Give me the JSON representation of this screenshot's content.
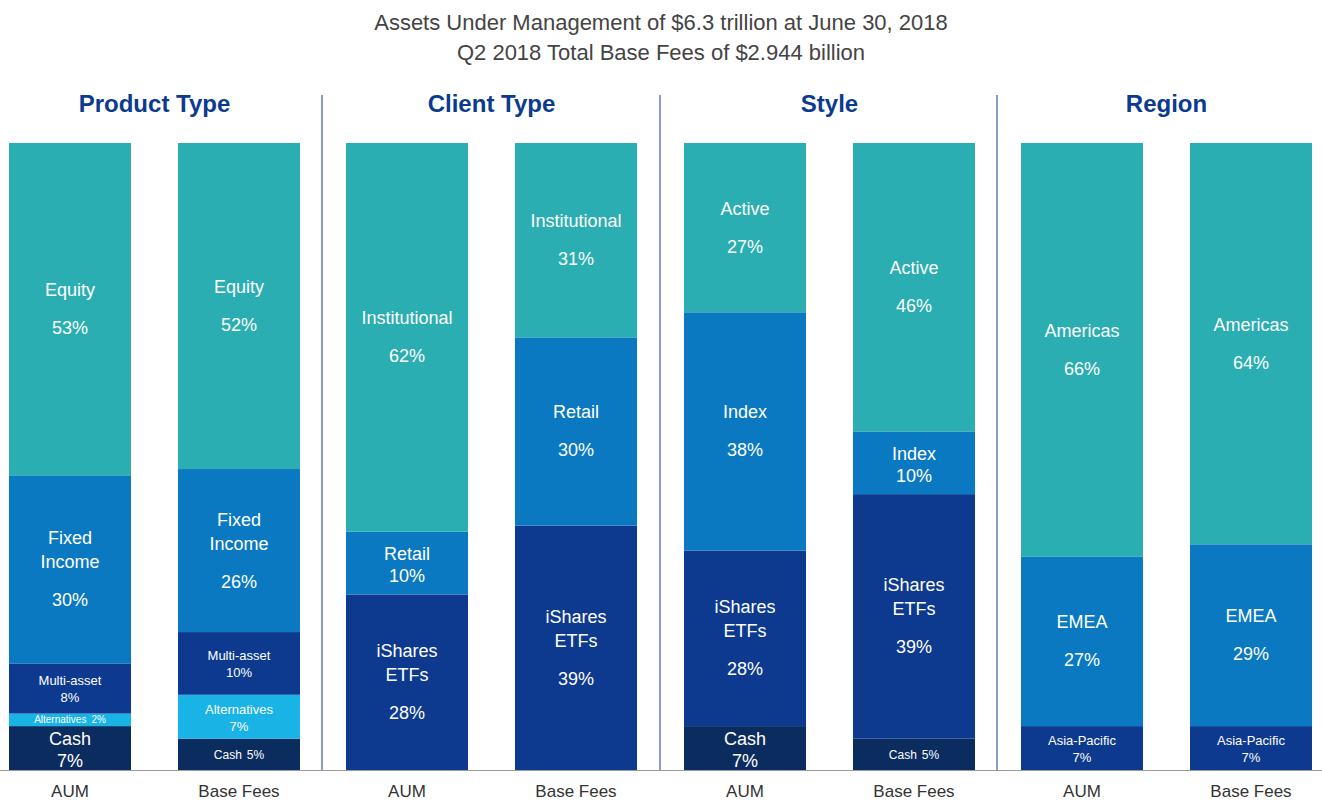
{
  "header": {
    "title": "Assets Under Management of $6.3 trillion at June 30, 2018",
    "subtitle": "Q2 2018 Total Base Fees of $2.944 billion"
  },
  "chart_data": [
    {
      "type": "bar",
      "title": "Product Type",
      "stacked": true,
      "data_labels": true,
      "tick_labels": "x",
      "ylim": [
        0,
        100
      ],
      "categories": [
        "AUM",
        "Base Fees"
      ],
      "series": [
        {
          "name": "Cash",
          "color": "#0b2c5f",
          "values": [
            7,
            5
          ],
          "value_labels": [
            "7%",
            "5%"
          ]
        },
        {
          "name": "Alternatives",
          "color": "#19b3e6",
          "values": [
            2,
            7
          ],
          "value_labels": [
            "2%",
            "7%"
          ]
        },
        {
          "name": "Multi-asset",
          "color": "#0d3a8f",
          "values": [
            8,
            10
          ],
          "value_labels": [
            "8%",
            "10%"
          ]
        },
        {
          "name": "Fixed Income",
          "color": "#0a79c2",
          "values": [
            30,
            26
          ],
          "value_labels": [
            "30%",
            "26%"
          ]
        },
        {
          "name": "Equity",
          "color": "#2aaeb1",
          "values": [
            53,
            52
          ],
          "value_labels": [
            "53%",
            "52%"
          ]
        }
      ]
    },
    {
      "type": "bar",
      "title": "Client Type",
      "stacked": true,
      "data_labels": true,
      "tick_labels": "x",
      "ylim": [
        0,
        100
      ],
      "categories": [
        "AUM",
        "Base Fees"
      ],
      "series": [
        {
          "name": "iShares ETFs",
          "color": "#0d3a8f",
          "values": [
            28,
            39
          ],
          "value_labels": [
            "28%",
            "39%"
          ]
        },
        {
          "name": "Retail",
          "color": "#0a79c2",
          "values": [
            10,
            30
          ],
          "value_labels": [
            "10%",
            "30%"
          ]
        },
        {
          "name": "Institutional",
          "color": "#2aaeb1",
          "values": [
            62,
            31
          ],
          "value_labels": [
            "62%",
            "31%"
          ]
        }
      ]
    },
    {
      "type": "bar",
      "title": "Style",
      "stacked": true,
      "data_labels": true,
      "tick_labels": "x",
      "ylim": [
        0,
        100
      ],
      "categories": [
        "AUM",
        "Base Fees"
      ],
      "series": [
        {
          "name": "Cash",
          "color": "#0b2c5f",
          "values": [
            7,
            5
          ],
          "value_labels": [
            "7%",
            "5%"
          ]
        },
        {
          "name": "iShares ETFs",
          "color": "#0d3a8f",
          "values": [
            28,
            39
          ],
          "value_labels": [
            "28%",
            "39%"
          ]
        },
        {
          "name": "Index",
          "color": "#0a79c2",
          "values": [
            38,
            10
          ],
          "value_labels": [
            "38%",
            "10%"
          ]
        },
        {
          "name": "Active",
          "color": "#2aaeb1",
          "values": [
            27,
            46
          ],
          "value_labels": [
            "27%",
            "46%"
          ]
        }
      ]
    },
    {
      "type": "bar",
      "title": "Region",
      "stacked": true,
      "data_labels": true,
      "tick_labels": "x",
      "ylim": [
        0,
        100
      ],
      "categories": [
        "AUM",
        "Base Fees"
      ],
      "series": [
        {
          "name": "Asia-Pacific",
          "color": "#0d3a8f",
          "values": [
            7,
            7
          ],
          "value_labels": [
            "7%",
            "7%"
          ]
        },
        {
          "name": "EMEA",
          "color": "#0a79c2",
          "values": [
            27,
            29
          ],
          "value_labels": [
            "27%",
            "29%"
          ]
        },
        {
          "name": "Americas",
          "color": "#2aaeb1",
          "values": [
            66,
            64
          ],
          "value_labels": [
            "66%",
            "64%"
          ]
        }
      ]
    }
  ]
}
